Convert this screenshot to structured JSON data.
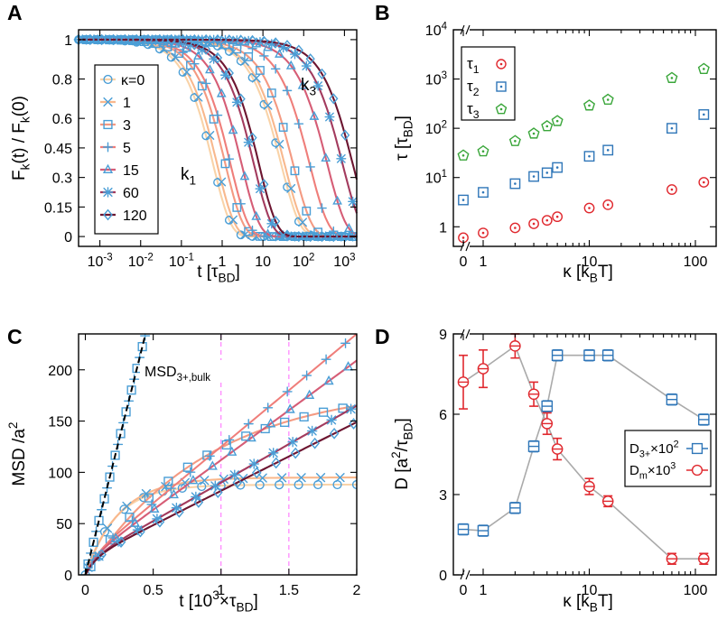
{
  "colors": {
    "kappa": [
      "#F9D3A8",
      "#F8B88D",
      "#F49A82",
      "#EF7E7A",
      "#D65D76",
      "#A33B5E",
      "#6C1530"
    ],
    "marker_blue": "#4A9ED6",
    "red": "#E0282E",
    "blue": "#2F76B8",
    "green": "#3AA63A",
    "gray": "#AAAAAA"
  },
  "chart_data": [
    {
      "panel": "A",
      "type": "line",
      "xlabel": "t [τBD]",
      "ylabel": "Fk(t) / Fk(0)",
      "xscale": "log",
      "xlim": [
        0.0003,
        2000
      ],
      "ylim": [
        -0.05,
        1.05
      ],
      "x_ticks": [
        "10-3",
        "10-2",
        "10-1",
        "1",
        "10",
        "102",
        "103"
      ],
      "y_ticks": [
        "0",
        "0.15",
        "0.3",
        "0.45",
        "0.6",
        "0.8",
        "1"
      ],
      "legend": {
        "position": "top-left",
        "title": "κ=0",
        "entries": [
          "κ=0",
          "1",
          "3",
          "5",
          "15",
          "60",
          "120"
        ],
        "markers": [
          "circle",
          "x",
          "square",
          "plus",
          "triangle",
          "asterisk",
          "diamond"
        ]
      },
      "annotations": [
        "k1",
        "k3"
      ],
      "series": [
        {
          "name": "κ=0",
          "k1_tau": 0.6,
          "k3_tau": 28
        },
        {
          "name": "1",
          "k1_tau": 0.75,
          "k3_tau": 34
        },
        {
          "name": "3",
          "k1_tau": 1.2,
          "k3_tau": 55
        },
        {
          "name": "5",
          "k1_tau": 1.6,
          "k3_tau": 140
        },
        {
          "name": "15",
          "k1_tau": 3.0,
          "k3_tau": 380
        },
        {
          "name": "60",
          "k1_tau": 6.0,
          "k3_tau": 900
        },
        {
          "name": "120",
          "k1_tau": 8.0,
          "k3_tau": 1600
        }
      ]
    },
    {
      "panel": "B",
      "type": "scatter",
      "xlabel": "κ [kBT]",
      "ylabel": "τ [τBD]",
      "xscale": "log (axis break at 0)",
      "yscale": "log",
      "ylim": [
        0.4,
        10000
      ],
      "x_ticks": [
        "0",
        "1",
        "10",
        "100"
      ],
      "y_ticks": [
        "1",
        "101",
        "102",
        "103",
        "104"
      ],
      "legend": {
        "position": "top-left",
        "entries": [
          "τ1",
          "τ2",
          "τ3"
        ]
      },
      "x": [
        0,
        1,
        2,
        3,
        4,
        5,
        10,
        15,
        60,
        120
      ],
      "series": [
        {
          "name": "τ1",
          "marker": "circle",
          "values": [
            0.6,
            0.75,
            0.95,
            1.15,
            1.35,
            1.6,
            2.4,
            2.8,
            5.7,
            8.0
          ]
        },
        {
          "name": "τ2",
          "marker": "square",
          "values": [
            3.5,
            5.0,
            7.5,
            10.5,
            12.5,
            16,
            27,
            36,
            100,
            190
          ]
        },
        {
          "name": "τ3",
          "marker": "pentagon",
          "values": [
            28,
            34,
            55,
            78,
            110,
            140,
            290,
            380,
            1050,
            1600
          ]
        }
      ]
    },
    {
      "panel": "C",
      "type": "line",
      "xlabel": "t [103×τBD]",
      "ylabel": "MSD /a2",
      "xlim": [
        -0.05,
        2.0
      ],
      "ylim": [
        0,
        235
      ],
      "x_ticks": [
        "0",
        "0.5",
        "1",
        "1.5",
        "2"
      ],
      "y_ticks": [
        "0",
        "50",
        "100",
        "150",
        "200"
      ],
      "vlines": [
        1.0,
        1.5
      ],
      "annotation": "MSD3+,bulk",
      "bulk_slope": 530,
      "series": [
        {
          "name": "κ=0",
          "plateau": 88,
          "tau": 0.22
        },
        {
          "name": "1",
          "plateau": 95,
          "tau": 0.25
        },
        {
          "name": "3",
          "plateau": 185,
          "tau": 0.9
        },
        {
          "name": "5",
          "linear_slope": 110,
          "offset": 15
        },
        {
          "name": "15",
          "linear_slope": 97,
          "offset": 15
        },
        {
          "name": "60",
          "linear_slope": 75,
          "offset": 15
        },
        {
          "name": "120",
          "linear_slope": 67,
          "offset": 15
        }
      ]
    },
    {
      "panel": "D",
      "type": "scatter",
      "xlabel": "κ [kBT]",
      "ylabel": "D [a2/τBD]",
      "xscale": "log (axis break at 0)",
      "ylim": [
        0,
        9
      ],
      "x_ticks": [
        "0",
        "1",
        "10",
        "100"
      ],
      "y_ticks": [
        "0",
        "3",
        "6",
        "9"
      ],
      "legend": {
        "position": "bottom-right",
        "entries": [
          "D3+×102",
          "Dm×103"
        ]
      },
      "x": [
        0,
        1,
        2,
        3,
        4,
        5,
        10,
        15,
        60,
        120
      ],
      "series": [
        {
          "name": "D3+×102",
          "marker": "square",
          "values": [
            1.7,
            1.65,
            2.5,
            4.8,
            6.3,
            8.2,
            8.2,
            8.2,
            6.55,
            5.8
          ],
          "errors": [
            0.2,
            0.2,
            0.2,
            0.2,
            0.2,
            0.2,
            0.2,
            0.2,
            0.2,
            0.2
          ]
        },
        {
          "name": "Dm×103",
          "marker": "circle",
          "values": [
            7.2,
            7.7,
            8.55,
            6.75,
            5.65,
            4.7,
            3.3,
            2.75,
            0.6,
            0.6
          ],
          "errors": [
            1.0,
            0.7,
            0.45,
            0.45,
            0.4,
            0.4,
            0.3,
            0.2,
            0.2,
            0.2
          ]
        }
      ]
    }
  ]
}
